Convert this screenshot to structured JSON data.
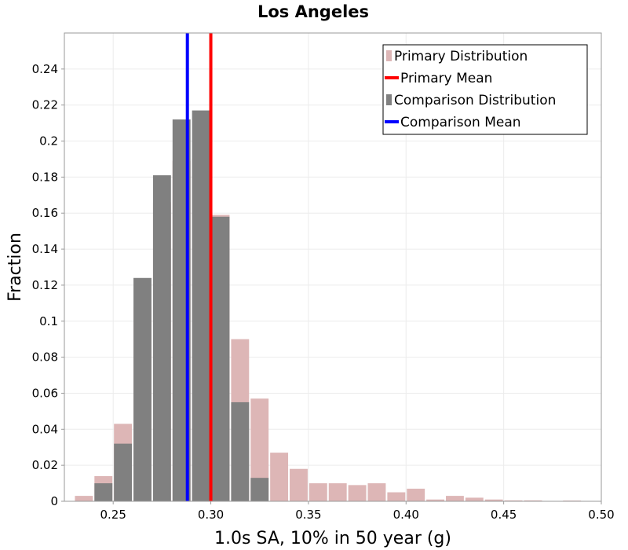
{
  "chart_data": {
    "type": "bar",
    "title": "Los Angeles",
    "xlabel": "1.0s SA, 10% in 50 year (g)",
    "ylabel": "Fraction",
    "xlim": [
      0.225,
      0.5
    ],
    "ylim": [
      0,
      0.26
    ],
    "bin_width": 0.01,
    "x_ticks": [
      0.25,
      0.3,
      0.35,
      0.4,
      0.45,
      0.5
    ],
    "x_tick_labels": [
      "0.25",
      "0.30",
      "0.35",
      "0.40",
      "0.45",
      "0.50"
    ],
    "y_ticks": [
      0,
      0.02,
      0.04,
      0.06,
      0.08,
      0.1,
      0.12,
      0.14,
      0.16,
      0.18,
      0.2,
      0.22,
      0.24
    ],
    "y_tick_labels": [
      "0",
      "0.02",
      "0.04",
      "0.06",
      "0.08",
      "0.1",
      "0.12",
      "0.14",
      "0.16",
      "0.18",
      "0.2",
      "0.22",
      "0.24"
    ],
    "grid": true,
    "legend_position": "top-right",
    "series": [
      {
        "name": "Primary Distribution",
        "kind": "histogram",
        "color": "#ddb6b6",
        "x": [
          0.235,
          0.245,
          0.255,
          0.265,
          0.275,
          0.285,
          0.295,
          0.305,
          0.315,
          0.325,
          0.335,
          0.345,
          0.355,
          0.365,
          0.375,
          0.385,
          0.395,
          0.405,
          0.415,
          0.425,
          0.435,
          0.445,
          0.455,
          0.465,
          0.475,
          0.485
        ],
        "values": [
          0.003,
          0.014,
          0.043,
          0.108,
          0.166,
          0.189,
          0.19,
          0.159,
          0.09,
          0.057,
          0.027,
          0.018,
          0.01,
          0.01,
          0.009,
          0.01,
          0.005,
          0.007,
          0.001,
          0.003,
          0.002,
          0.001,
          0.0005,
          0.0005,
          0.0002,
          0.0004
        ]
      },
      {
        "name": "Primary Mean",
        "kind": "vline",
        "color": "#ff0000",
        "x": 0.3
      },
      {
        "name": "Comparison Distribution",
        "kind": "histogram",
        "color": "#808080",
        "x": [
          0.245,
          0.255,
          0.265,
          0.275,
          0.285,
          0.295,
          0.305,
          0.315,
          0.325
        ],
        "values": [
          0.01,
          0.032,
          0.124,
          0.181,
          0.212,
          0.217,
          0.158,
          0.055,
          0.013
        ]
      },
      {
        "name": "Comparison Mean",
        "kind": "vline",
        "color": "#0000ff",
        "x": 0.288
      }
    ]
  }
}
